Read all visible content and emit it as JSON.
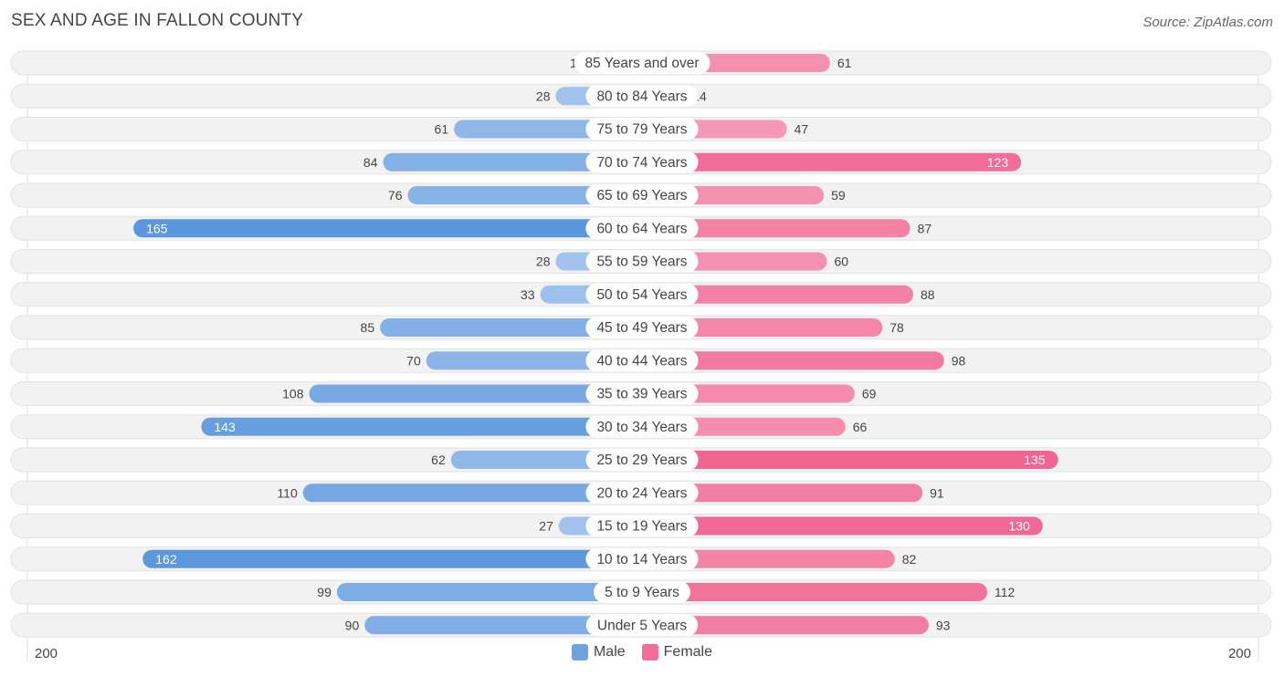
{
  "title": "SEX AND AGE IN FALLON COUNTY",
  "source": "Source: ZipAtlas.com",
  "axis": {
    "left_label": "200",
    "right_label": "200"
  },
  "legend": [
    {
      "label": "Male",
      "color": "#6fa3e0"
    },
    {
      "label": "Female",
      "color": "#f26d97"
    }
  ],
  "chart_data": {
    "type": "bar",
    "orientation": "horizontal-diverging",
    "xlim": [
      -200,
      200
    ],
    "categories": [
      "85 Years and over",
      "80 to 84 Years",
      "75 to 79 Years",
      "70 to 74 Years",
      "65 to 69 Years",
      "60 to 64 Years",
      "55 to 59 Years",
      "50 to 54 Years",
      "45 to 49 Years",
      "40 to 44 Years",
      "35 to 39 Years",
      "30 to 34 Years",
      "25 to 29 Years",
      "20 to 24 Years",
      "15 to 19 Years",
      "10 to 14 Years",
      "5 to 9 Years",
      "Under 5 Years"
    ],
    "series": [
      {
        "name": "Male",
        "values": [
          17,
          28,
          61,
          84,
          76,
          165,
          28,
          33,
          85,
          70,
          108,
          143,
          62,
          110,
          27,
          162,
          99,
          90
        ]
      },
      {
        "name": "Female",
        "values": [
          61,
          14,
          47,
          123,
          59,
          87,
          60,
          88,
          78,
          98,
          69,
          66,
          135,
          91,
          130,
          82,
          112,
          93
        ]
      }
    ]
  }
}
